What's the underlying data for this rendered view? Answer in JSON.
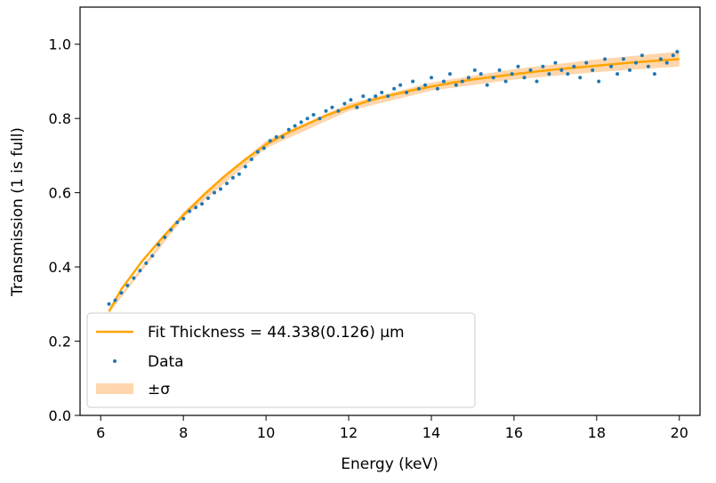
{
  "chart_data": {
    "type": "scatter",
    "xlabel": "Energy (keV)",
    "ylabel": "Transmission (1 is full)",
    "xlim": [
      5.5,
      20.5
    ],
    "ylim": [
      0.0,
      1.1
    ],
    "x_ticks": [
      6,
      8,
      10,
      12,
      14,
      16,
      18,
      20
    ],
    "y_ticks": [
      0.0,
      0.2,
      0.4,
      0.6,
      0.8,
      1.0
    ],
    "grid": false,
    "legend_position": "lower-left",
    "colors": {
      "fit": "#ffa500",
      "band": "#ffcc99",
      "data": "#1f77b4"
    },
    "series": [
      {
        "name": "Fit Thickness = 44.338(0.126) μm",
        "kind": "line",
        "x": [
          6.2,
          6.5,
          7.0,
          7.5,
          8.0,
          8.5,
          9.0,
          9.5,
          10.0,
          10.5,
          11.0,
          11.5,
          12.0,
          12.5,
          13.0,
          13.5,
          14.0,
          14.5,
          15.0,
          15.5,
          16.0,
          16.5,
          17.0,
          17.5,
          18.0,
          18.5,
          19.0,
          19.5,
          20.0
        ],
        "y": [
          0.28,
          0.34,
          0.415,
          0.48,
          0.54,
          0.595,
          0.645,
          0.69,
          0.73,
          0.76,
          0.785,
          0.81,
          0.83,
          0.848,
          0.862,
          0.875,
          0.886,
          0.896,
          0.905,
          0.912,
          0.919,
          0.926,
          0.932,
          0.937,
          0.942,
          0.947,
          0.952,
          0.956,
          0.96
        ]
      },
      {
        "name": "±σ",
        "kind": "band",
        "x": [
          6.2,
          8.0,
          10.0,
          12.0,
          14.0,
          16.0,
          18.0,
          20.0
        ],
        "y_low": [
          0.275,
          0.532,
          0.72,
          0.82,
          0.875,
          0.905,
          0.925,
          0.94
        ],
        "y_high": [
          0.285,
          0.548,
          0.74,
          0.84,
          0.897,
          0.933,
          0.959,
          0.98
        ]
      },
      {
        "name": "Data",
        "kind": "scatter",
        "x": [
          6.2,
          6.35,
          6.5,
          6.65,
          6.8,
          6.95,
          7.1,
          7.25,
          7.4,
          7.55,
          7.7,
          7.85,
          8.0,
          8.15,
          8.3,
          8.45,
          8.6,
          8.75,
          8.9,
          9.05,
          9.2,
          9.35,
          9.5,
          9.65,
          9.8,
          9.95,
          10.1,
          10.25,
          10.4,
          10.55,
          10.7,
          10.85,
          11.0,
          11.15,
          11.3,
          11.45,
          11.6,
          11.75,
          11.9,
          12.05,
          12.2,
          12.35,
          12.5,
          12.65,
          12.8,
          12.95,
          13.1,
          13.25,
          13.4,
          13.55,
          13.7,
          13.85,
          14.0,
          14.15,
          14.3,
          14.45,
          14.6,
          14.75,
          14.9,
          15.05,
          15.2,
          15.35,
          15.5,
          15.65,
          15.8,
          15.95,
          16.1,
          16.25,
          16.4,
          16.55,
          16.7,
          16.85,
          17.0,
          17.15,
          17.3,
          17.45,
          17.6,
          17.75,
          17.9,
          18.05,
          18.2,
          18.35,
          18.5,
          18.65,
          18.8,
          18.95,
          19.1,
          19.25,
          19.4,
          19.55,
          19.7,
          19.85,
          19.95
        ],
        "y": [
          0.3,
          0.31,
          0.33,
          0.35,
          0.37,
          0.39,
          0.41,
          0.43,
          0.46,
          0.48,
          0.5,
          0.52,
          0.53,
          0.55,
          0.56,
          0.57,
          0.585,
          0.6,
          0.61,
          0.625,
          0.64,
          0.65,
          0.67,
          0.69,
          0.71,
          0.72,
          0.74,
          0.75,
          0.75,
          0.77,
          0.78,
          0.79,
          0.8,
          0.81,
          0.8,
          0.82,
          0.83,
          0.82,
          0.84,
          0.85,
          0.83,
          0.86,
          0.85,
          0.86,
          0.87,
          0.86,
          0.88,
          0.89,
          0.87,
          0.9,
          0.88,
          0.89,
          0.91,
          0.88,
          0.9,
          0.92,
          0.89,
          0.9,
          0.91,
          0.93,
          0.92,
          0.89,
          0.91,
          0.93,
          0.9,
          0.92,
          0.94,
          0.91,
          0.93,
          0.9,
          0.94,
          0.92,
          0.95,
          0.93,
          0.92,
          0.94,
          0.91,
          0.95,
          0.93,
          0.9,
          0.96,
          0.94,
          0.92,
          0.96,
          0.93,
          0.95,
          0.97,
          0.94,
          0.92,
          0.96,
          0.95,
          0.97,
          0.98
        ]
      }
    ]
  }
}
